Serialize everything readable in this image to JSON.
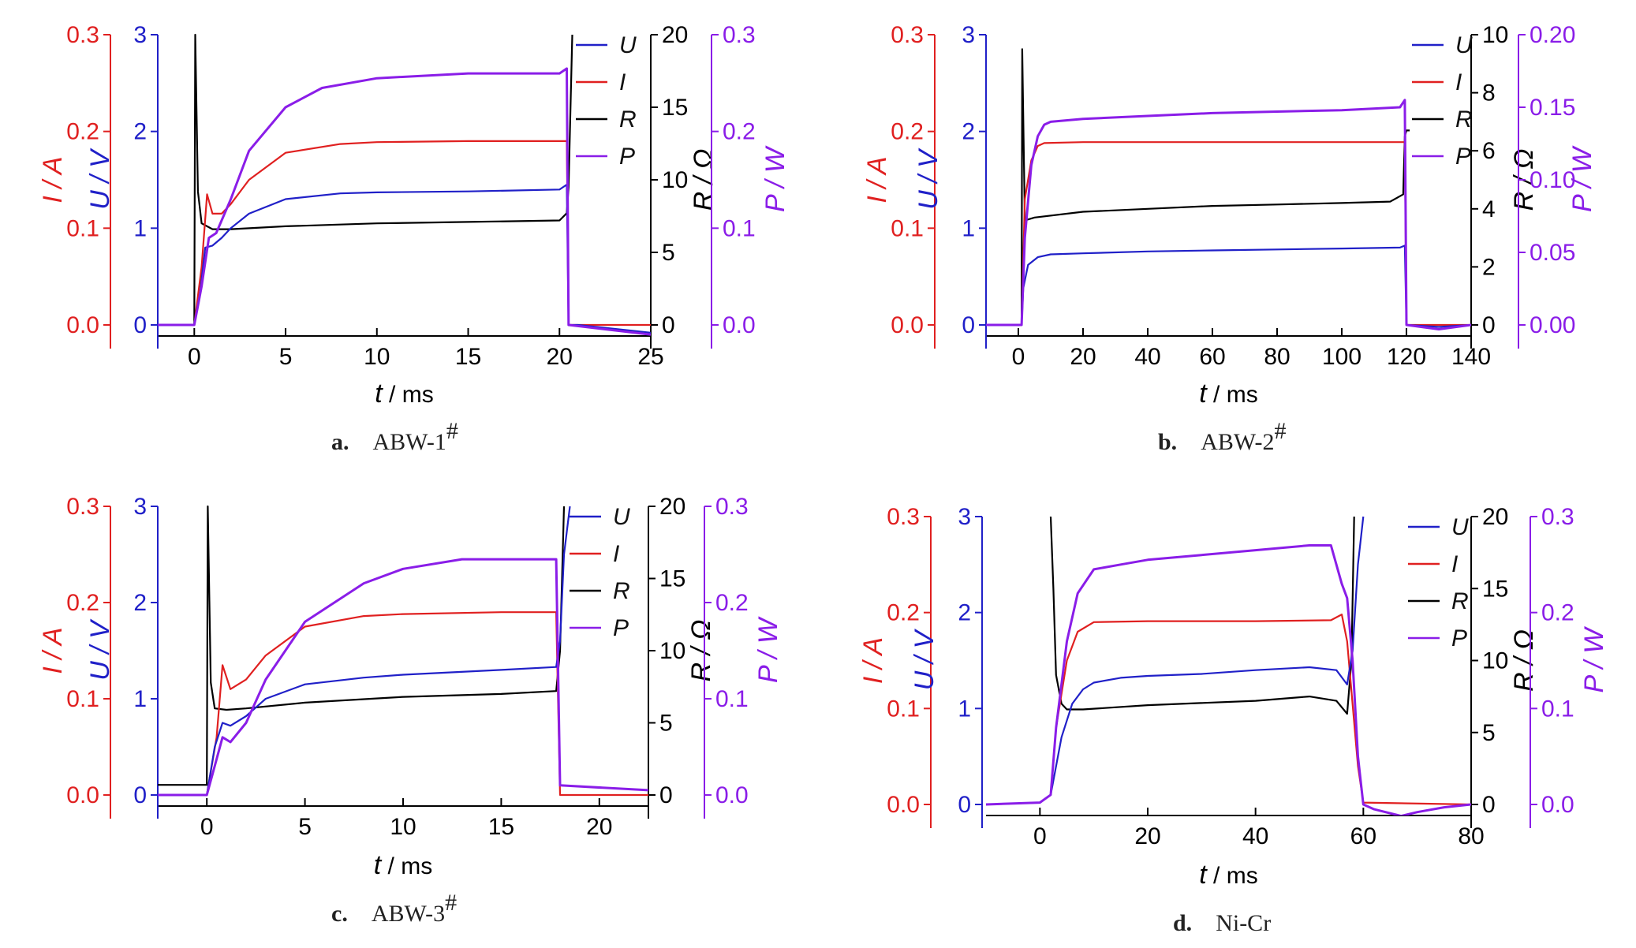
{
  "colors": {
    "U": "#2020c8",
    "I": "#e02020",
    "R": "#000000",
    "P": "#8a1de8",
    "axis": "#000000"
  },
  "chart_data": [
    {
      "id": "a",
      "type": "line",
      "caption": {
        "letter": "a.",
        "name": "ABW-1",
        "sup": "#"
      },
      "xlabel": {
        "italic": "t",
        "rest": " / ms"
      },
      "xlim": [
        -2,
        25
      ],
      "xticks": [
        "0",
        "5",
        "10",
        "15",
        "20",
        "25"
      ],
      "ylabels": {
        "I": "I / A",
        "U": "U / V",
        "R": "R / Ω",
        "P": "P / W"
      },
      "axes": {
        "I": {
          "lim": [
            0,
            0.3
          ],
          "ticks": [
            "0.0",
            "0.1",
            "0.2",
            "0.3"
          ]
        },
        "U": {
          "lim": [
            0,
            3
          ],
          "ticks": [
            "0",
            "1",
            "2",
            "3"
          ]
        },
        "R": {
          "lim": [
            0,
            20
          ],
          "ticks": [
            "0",
            "5",
            "10",
            "15",
            "20"
          ]
        },
        "P": {
          "lim": [
            0,
            0.3
          ],
          "ticks": [
            "0.0",
            "0.1",
            "0.2",
            "0.3"
          ]
        }
      },
      "legend": [
        "U",
        "I",
        "R",
        "P"
      ],
      "series": [
        {
          "name": "U",
          "axis": "U",
          "x": [
            -2,
            0,
            0.3,
            0.6,
            1,
            1.5,
            2,
            3,
            5,
            8,
            10,
            15,
            20,
            20.4,
            20.5,
            21,
            25
          ],
          "y": [
            0,
            0,
            0.3,
            0.8,
            0.82,
            0.9,
            1.0,
            1.15,
            1.3,
            1.36,
            1.37,
            1.38,
            1.4,
            1.45,
            0.0,
            0.0,
            -0.08
          ]
        },
        {
          "name": "I",
          "axis": "I",
          "x": [
            -2,
            0,
            0.4,
            0.7,
            1,
            1.5,
            2,
            3,
            5,
            8,
            10,
            15,
            20,
            20.4,
            20.5,
            25
          ],
          "y": [
            0,
            0,
            0.06,
            0.135,
            0.115,
            0.115,
            0.125,
            0.15,
            0.178,
            0.187,
            0.189,
            0.19,
            0.19,
            0.19,
            0.0,
            0.0
          ]
        },
        {
          "name": "R",
          "axis": "R",
          "x": [
            -2,
            0,
            0.05,
            0.2,
            0.4,
            1,
            2,
            5,
            10,
            15,
            20,
            20.4,
            20.5,
            20.7
          ],
          "y": [
            0,
            0,
            20,
            9.2,
            7,
            6.6,
            6.6,
            6.8,
            7.0,
            7.1,
            7.2,
            7.7,
            9.5,
            20
          ]
        },
        {
          "name": "P",
          "axis": "P",
          "x": [
            -2,
            0,
            0.4,
            0.8,
            1.2,
            2,
            3,
            5,
            7,
            10,
            15,
            20,
            20.4,
            20.5,
            25
          ],
          "y": [
            0,
            0,
            0.04,
            0.09,
            0.095,
            0.13,
            0.18,
            0.225,
            0.245,
            0.255,
            0.26,
            0.26,
            0.265,
            0.0,
            -0.01
          ]
        }
      ]
    },
    {
      "id": "b",
      "type": "line",
      "caption": {
        "letter": "b.",
        "name": "ABW-2",
        "sup": "#"
      },
      "xlabel": {
        "italic": "t",
        "rest": " / ms"
      },
      "xlim": [
        -10,
        140
      ],
      "xticks": [
        "0",
        "20",
        "40",
        "60",
        "80",
        "100",
        "120",
        "140"
      ],
      "ylabels": {
        "I": "I / A",
        "U": "U / V",
        "R": "R / Ω",
        "P": "P / W"
      },
      "axes": {
        "I": {
          "lim": [
            0,
            0.3
          ],
          "ticks": [
            "0.0",
            "0.1",
            "0.2",
            "0.3"
          ]
        },
        "U": {
          "lim": [
            0,
            3
          ],
          "ticks": [
            "0",
            "1",
            "2",
            "3"
          ]
        },
        "R": {
          "lim": [
            0,
            10
          ],
          "ticks": [
            "0",
            "2",
            "4",
            "6",
            "8",
            "10"
          ]
        },
        "P": {
          "lim": [
            0,
            0.2
          ],
          "ticks": [
            "0.00",
            "0.05",
            "0.10",
            "0.15",
            "0.20"
          ]
        }
      },
      "legend": [
        "U",
        "I",
        "R",
        "P"
      ],
      "series": [
        {
          "name": "U",
          "axis": "U",
          "x": [
            -10,
            1,
            1.5,
            3,
            6,
            10,
            20,
            40,
            60,
            80,
            100,
            118,
            119.5,
            120,
            130,
            140
          ],
          "y": [
            0,
            0,
            0.38,
            0.62,
            0.7,
            0.73,
            0.74,
            0.76,
            0.77,
            0.78,
            0.79,
            0.8,
            0.82,
            0,
            -0.02,
            0
          ]
        },
        {
          "name": "I",
          "axis": "I",
          "x": [
            -10,
            1,
            2,
            4,
            6,
            8,
            20,
            60,
            100,
            119.5,
            120,
            140
          ],
          "y": [
            0,
            0,
            0.13,
            0.17,
            0.185,
            0.188,
            0.189,
            0.189,
            0.189,
            0.189,
            0,
            0
          ]
        },
        {
          "name": "R",
          "axis": "R",
          "x": [
            -10,
            1,
            1.2,
            2,
            5,
            20,
            40,
            60,
            80,
            100,
            115,
            119,
            119.5,
            120,
            121
          ],
          "y": [
            0,
            0,
            9.5,
            3.6,
            3.7,
            3.9,
            4.0,
            4.1,
            4.15,
            4.2,
            4.25,
            4.5,
            6.5,
            6.7,
            6.7
          ]
        },
        {
          "name": "P",
          "axis": "P",
          "x": [
            -10,
            1,
            2,
            4,
            6,
            8,
            10,
            20,
            40,
            60,
            80,
            100,
            118,
            119.5,
            120,
            130,
            140
          ],
          "y": [
            0,
            0,
            0.06,
            0.11,
            0.13,
            0.138,
            0.14,
            0.142,
            0.144,
            0.146,
            0.147,
            0.148,
            0.15,
            0.155,
            0,
            -0.003,
            0
          ]
        }
      ]
    },
    {
      "id": "c",
      "type": "line",
      "caption": {
        "letter": "c.",
        "name": "ABW-3",
        "sup": "#"
      },
      "xlabel": {
        "italic": "t",
        "rest": " / ms"
      },
      "xlim": [
        -2.5,
        22.5
      ],
      "xticks": [
        "0",
        "5",
        "10",
        "15",
        "20"
      ],
      "ylabels": {
        "I": "I / A",
        "U": "U / V",
        "R": "R / Ω",
        "P": "P / W"
      },
      "axes": {
        "I": {
          "lim": [
            0,
            0.3
          ],
          "ticks": [
            "0.0",
            "0.1",
            "0.2",
            "0.3"
          ]
        },
        "U": {
          "lim": [
            0,
            3
          ],
          "ticks": [
            "0",
            "1",
            "2",
            "3"
          ]
        },
        "R": {
          "lim": [
            0,
            20
          ],
          "ticks": [
            "0",
            "5",
            "10",
            "15",
            "20"
          ]
        },
        "P": {
          "lim": [
            0,
            0.3
          ],
          "ticks": [
            "0.0",
            "0.1",
            "0.2",
            "0.3"
          ]
        }
      },
      "legend": [
        "U",
        "I",
        "R",
        "P"
      ],
      "series": [
        {
          "name": "U",
          "axis": "U",
          "x": [
            -2.5,
            0,
            0.4,
            0.8,
            1.2,
            2,
            3,
            5,
            8,
            10,
            15,
            17.8,
            18,
            18.2,
            18.5
          ],
          "y": [
            0,
            0,
            0.5,
            0.75,
            0.72,
            0.82,
            1.0,
            1.15,
            1.22,
            1.25,
            1.3,
            1.33,
            1.6,
            2.5,
            3.0
          ]
        },
        {
          "name": "I",
          "axis": "I",
          "x": [
            -2.5,
            0,
            0.5,
            0.8,
            1.2,
            2,
            3,
            5,
            8,
            10,
            15,
            17.8,
            18,
            22.5
          ],
          "y": [
            0,
            0,
            0.06,
            0.135,
            0.11,
            0.12,
            0.145,
            0.175,
            0.186,
            0.188,
            0.19,
            0.19,
            0,
            0
          ]
        },
        {
          "name": "R",
          "axis": "R",
          "x": [
            -2.5,
            0,
            0.05,
            0.2,
            0.4,
            1,
            2,
            5,
            10,
            15,
            17.8,
            18,
            18.2
          ],
          "y": [
            0.7,
            0.7,
            20,
            7.8,
            6,
            5.9,
            6.0,
            6.4,
            6.8,
            7.0,
            7.2,
            10,
            20
          ]
        },
        {
          "name": "P",
          "axis": "P",
          "x": [
            -2.5,
            0,
            0.4,
            0.8,
            1.2,
            2,
            3,
            5,
            8,
            10,
            13,
            15,
            17.8,
            18,
            22.5
          ],
          "y": [
            0,
            0,
            0.03,
            0.06,
            0.055,
            0.075,
            0.12,
            0.18,
            0.22,
            0.235,
            0.245,
            0.245,
            0.245,
            0.01,
            0.005
          ]
        }
      ]
    },
    {
      "id": "d",
      "type": "line",
      "caption": {
        "letter": "d.",
        "name": "Ni-Cr",
        "sup": ""
      },
      "xlabel": {
        "italic": "t",
        "rest": " / ms"
      },
      "xlim": [
        -10,
        80
      ],
      "xticks": [
        "0",
        "20",
        "40",
        "60",
        "80"
      ],
      "ylabels": {
        "I": "I / A",
        "U": "U / V",
        "R": "R / Ω",
        "P": "P / W"
      },
      "axes": {
        "I": {
          "lim": [
            0,
            0.3
          ],
          "ticks": [
            "0.0",
            "0.1",
            "0.2",
            "0.3"
          ]
        },
        "U": {
          "lim": [
            0,
            3
          ],
          "ticks": [
            "0",
            "1",
            "2",
            "3"
          ]
        },
        "R": {
          "lim": [
            0,
            20
          ],
          "ticks": [
            "0",
            "5",
            "10",
            "15",
            "20"
          ]
        },
        "P": {
          "lim": [
            0,
            0.3
          ],
          "ticks": [
            "0.0",
            "0.1",
            "0.2",
            "0.3"
          ]
        }
      },
      "legend": [
        "U",
        "I",
        "R",
        "P"
      ],
      "series": [
        {
          "name": "U",
          "axis": "U",
          "x": [
            -10,
            0,
            2,
            4,
            6,
            8,
            10,
            15,
            20,
            30,
            40,
            50,
            55,
            57,
            58,
            59,
            60
          ],
          "y": [
            0,
            0.02,
            0.1,
            0.7,
            1.05,
            1.2,
            1.27,
            1.32,
            1.34,
            1.36,
            1.4,
            1.43,
            1.4,
            1.25,
            1.6,
            2.5,
            3.0
          ]
        },
        {
          "name": "I",
          "axis": "I",
          "x": [
            -10,
            0,
            2,
            3,
            5,
            7,
            10,
            20,
            40,
            54,
            56,
            57,
            59,
            60,
            80
          ],
          "y": [
            0,
            0.002,
            0.01,
            0.08,
            0.15,
            0.18,
            0.19,
            0.191,
            0.191,
            0.192,
            0.198,
            0.17,
            0.04,
            0.002,
            0
          ]
        },
        {
          "name": "R",
          "axis": "R",
          "x": [
            2,
            2.5,
            3,
            4,
            5,
            8,
            20,
            40,
            50,
            55,
            57,
            57.8,
            58.3
          ],
          "y": [
            20,
            15,
            9,
            7,
            6.6,
            6.6,
            6.9,
            7.2,
            7.5,
            7.2,
            6.3,
            10,
            20
          ]
        },
        {
          "name": "P",
          "axis": "P",
          "x": [
            -10,
            0,
            2,
            3,
            5,
            7,
            10,
            15,
            20,
            30,
            40,
            50,
            54,
            56,
            57,
            58,
            59,
            60,
            62,
            67,
            70,
            75,
            80
          ],
          "y": [
            0,
            0.002,
            0.01,
            0.08,
            0.17,
            0.22,
            0.245,
            0.25,
            0.255,
            0.26,
            0.265,
            0.27,
            0.27,
            0.23,
            0.215,
            0.15,
            0.05,
            0.0,
            -0.005,
            -0.012,
            -0.008,
            -0.003,
            0
          ]
        }
      ]
    }
  ]
}
